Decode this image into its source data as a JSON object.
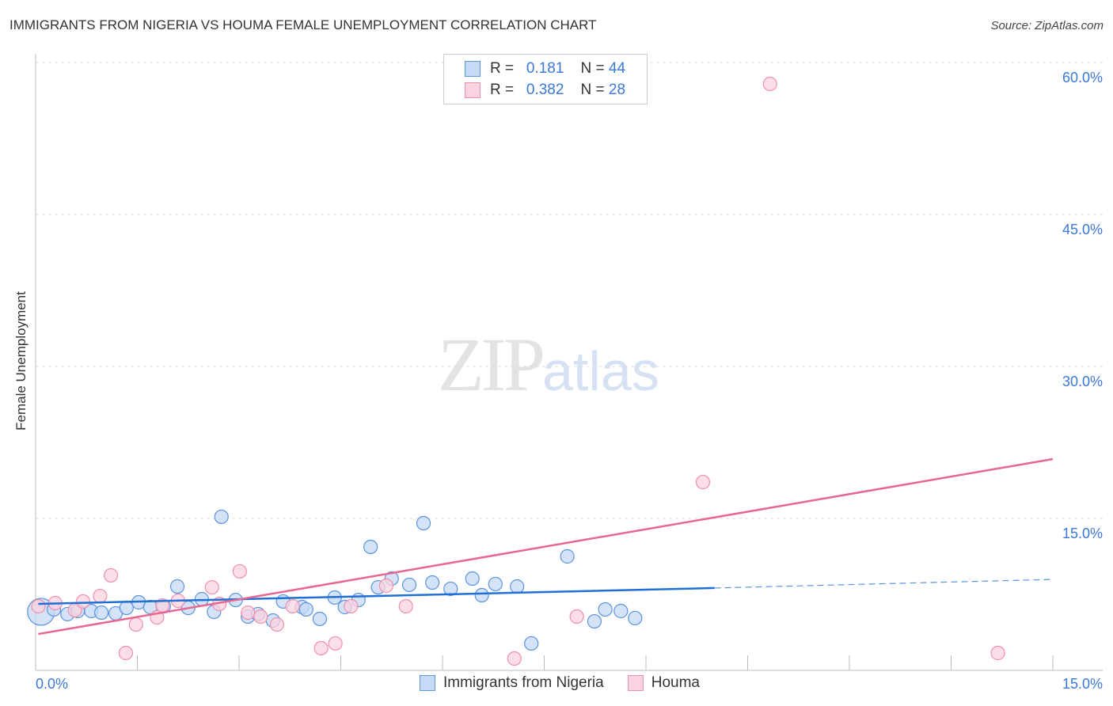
{
  "chart_data": {
    "type": "scatter",
    "title": "IMMIGRANTS FROM NIGERIA VS HOUMA FEMALE UNEMPLOYMENT CORRELATION CHART",
    "source": "Source: ZipAtlas.com",
    "xlabel": "",
    "ylabel": "Female Unemployment",
    "xlim": [
      0,
      15
    ],
    "ylim": [
      0,
      60
    ],
    "x_tick_labels": [
      "0.0%",
      "15.0%"
    ],
    "y_ticks": [
      15,
      30,
      45,
      60
    ],
    "y_tick_labels": [
      "15.0%",
      "30.0%",
      "45.0%",
      "60.0%"
    ],
    "legend": [
      {
        "r_label": "R = ",
        "r": "0.181",
        "n_label": "N = ",
        "n": "44"
      },
      {
        "r_label": "R = ",
        "r": "0.382",
        "n_label": "N = ",
        "n": "28"
      }
    ],
    "series": [
      {
        "name": "Immigrants from Nigeria",
        "color": "#5b93e0",
        "fill": "#c5daf6",
        "trend": [
          [
            0.04,
            6.56
          ],
          [
            10.01,
            8.13
          ],
          [
            15,
            8.98
          ]
        ],
        "points": [
          [
            0.08,
            5.78
          ],
          [
            0.27,
            6.02
          ],
          [
            0.47,
            5.55
          ],
          [
            0.62,
            5.86
          ],
          [
            0.82,
            5.86
          ],
          [
            0.97,
            5.7
          ],
          [
            1.18,
            5.63
          ],
          [
            1.34,
            6.17
          ],
          [
            1.52,
            6.72
          ],
          [
            1.69,
            6.25
          ],
          [
            1.89,
            6.33
          ],
          [
            2.09,
            8.28
          ],
          [
            2.25,
            6.17
          ],
          [
            2.45,
            7.03
          ],
          [
            2.63,
            5.78
          ],
          [
            2.74,
            15.16
          ],
          [
            2.95,
            6.95
          ],
          [
            3.13,
            5.31
          ],
          [
            3.28,
            5.55
          ],
          [
            3.5,
            4.92
          ],
          [
            3.65,
            6.8
          ],
          [
            3.93,
            6.25
          ],
          [
            3.99,
            6.02
          ],
          [
            4.19,
            5.08
          ],
          [
            4.41,
            7.19
          ],
          [
            4.56,
            6.25
          ],
          [
            4.76,
            6.95
          ],
          [
            4.94,
            12.19
          ],
          [
            5.05,
            8.2
          ],
          [
            5.25,
            9.06
          ],
          [
            5.51,
            8.44
          ],
          [
            5.72,
            14.53
          ],
          [
            5.85,
            8.67
          ],
          [
            6.12,
            8.05
          ],
          [
            6.44,
            9.06
          ],
          [
            6.58,
            7.42
          ],
          [
            6.78,
            8.52
          ],
          [
            7.1,
            8.28
          ],
          [
            7.31,
            2.66
          ],
          [
            7.84,
            11.25
          ],
          [
            8.24,
            4.84
          ],
          [
            8.4,
            6.02
          ],
          [
            8.63,
            5.86
          ],
          [
            8.84,
            5.16
          ]
        ]
      },
      {
        "name": "Houma",
        "color": "#ee8fab",
        "fill": "#fbd3df",
        "trend": [
          [
            0.04,
            3.59
          ],
          [
            15,
            20.86
          ]
        ],
        "points": [
          [
            0.04,
            6.33
          ],
          [
            0.29,
            6.64
          ],
          [
            0.58,
            5.94
          ],
          [
            0.7,
            6.8
          ],
          [
            0.95,
            7.34
          ],
          [
            1.11,
            9.38
          ],
          [
            1.48,
            4.53
          ],
          [
            1.79,
            5.23
          ],
          [
            1.87,
            6.41
          ],
          [
            2.1,
            6.88
          ],
          [
            2.6,
            8.2
          ],
          [
            2.71,
            6.56
          ],
          [
            3.01,
            9.77
          ],
          [
            3.13,
            5.7
          ],
          [
            3.32,
            5.31
          ],
          [
            3.56,
            4.53
          ],
          [
            3.79,
            6.33
          ],
          [
            4.21,
            2.19
          ],
          [
            4.42,
            2.66
          ],
          [
            4.65,
            6.33
          ],
          [
            5.17,
            8.36
          ],
          [
            5.46,
            6.33
          ],
          [
            7.06,
            1.17
          ],
          [
            7.98,
            5.31
          ],
          [
            9.84,
            18.59
          ],
          [
            10.83,
            57.89
          ],
          [
            14.19,
            1.72
          ],
          [
            1.33,
            1.72
          ]
        ]
      }
    ]
  },
  "watermark": {
    "zip": "ZIP",
    "atlas": "atlas"
  }
}
